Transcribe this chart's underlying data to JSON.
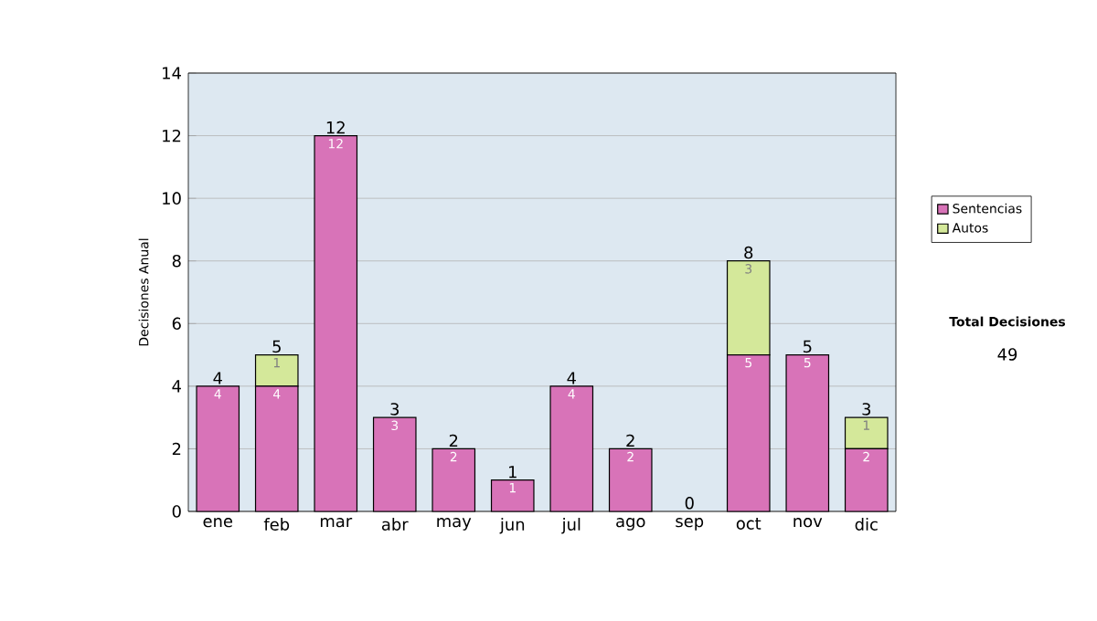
{
  "chart_data": {
    "type": "bar",
    "stacked": true,
    "ylabel": "Decisiones Anual",
    "categories": [
      "ene",
      "feb",
      "mar",
      "abr",
      "may",
      "jun",
      "jul",
      "ago",
      "sep",
      "oct",
      "nov",
      "dic"
    ],
    "series": [
      {
        "name": "Sentencias",
        "color": "#d873b8",
        "values": [
          4,
          4,
          12,
          3,
          2,
          1,
          4,
          2,
          0,
          5,
          5,
          2
        ],
        "value_labels": [
          "4",
          "4",
          "12",
          "3",
          "2",
          "1",
          "4",
          "2",
          null,
          "5",
          "5",
          "2"
        ]
      },
      {
        "name": "Autos",
        "color": "#d4e89a",
        "values": [
          0,
          1,
          0,
          0,
          0,
          0,
          0,
          0,
          0,
          3,
          0,
          1
        ],
        "value_labels": [
          null,
          "1",
          null,
          null,
          null,
          null,
          null,
          null,
          null,
          "3",
          null,
          "1"
        ]
      }
    ],
    "totals": [
      "4",
      "5",
      "12",
      "3",
      "2",
      "1",
      "4",
      "2",
      "0",
      "8",
      "5",
      "3"
    ],
    "ylim": [
      0,
      14
    ],
    "yticks": [
      0,
      2,
      4,
      6,
      8,
      10,
      12,
      14
    ],
    "grid": "y",
    "legend": "right",
    "annotations": [
      "Total Decisiones",
      "49"
    ]
  }
}
